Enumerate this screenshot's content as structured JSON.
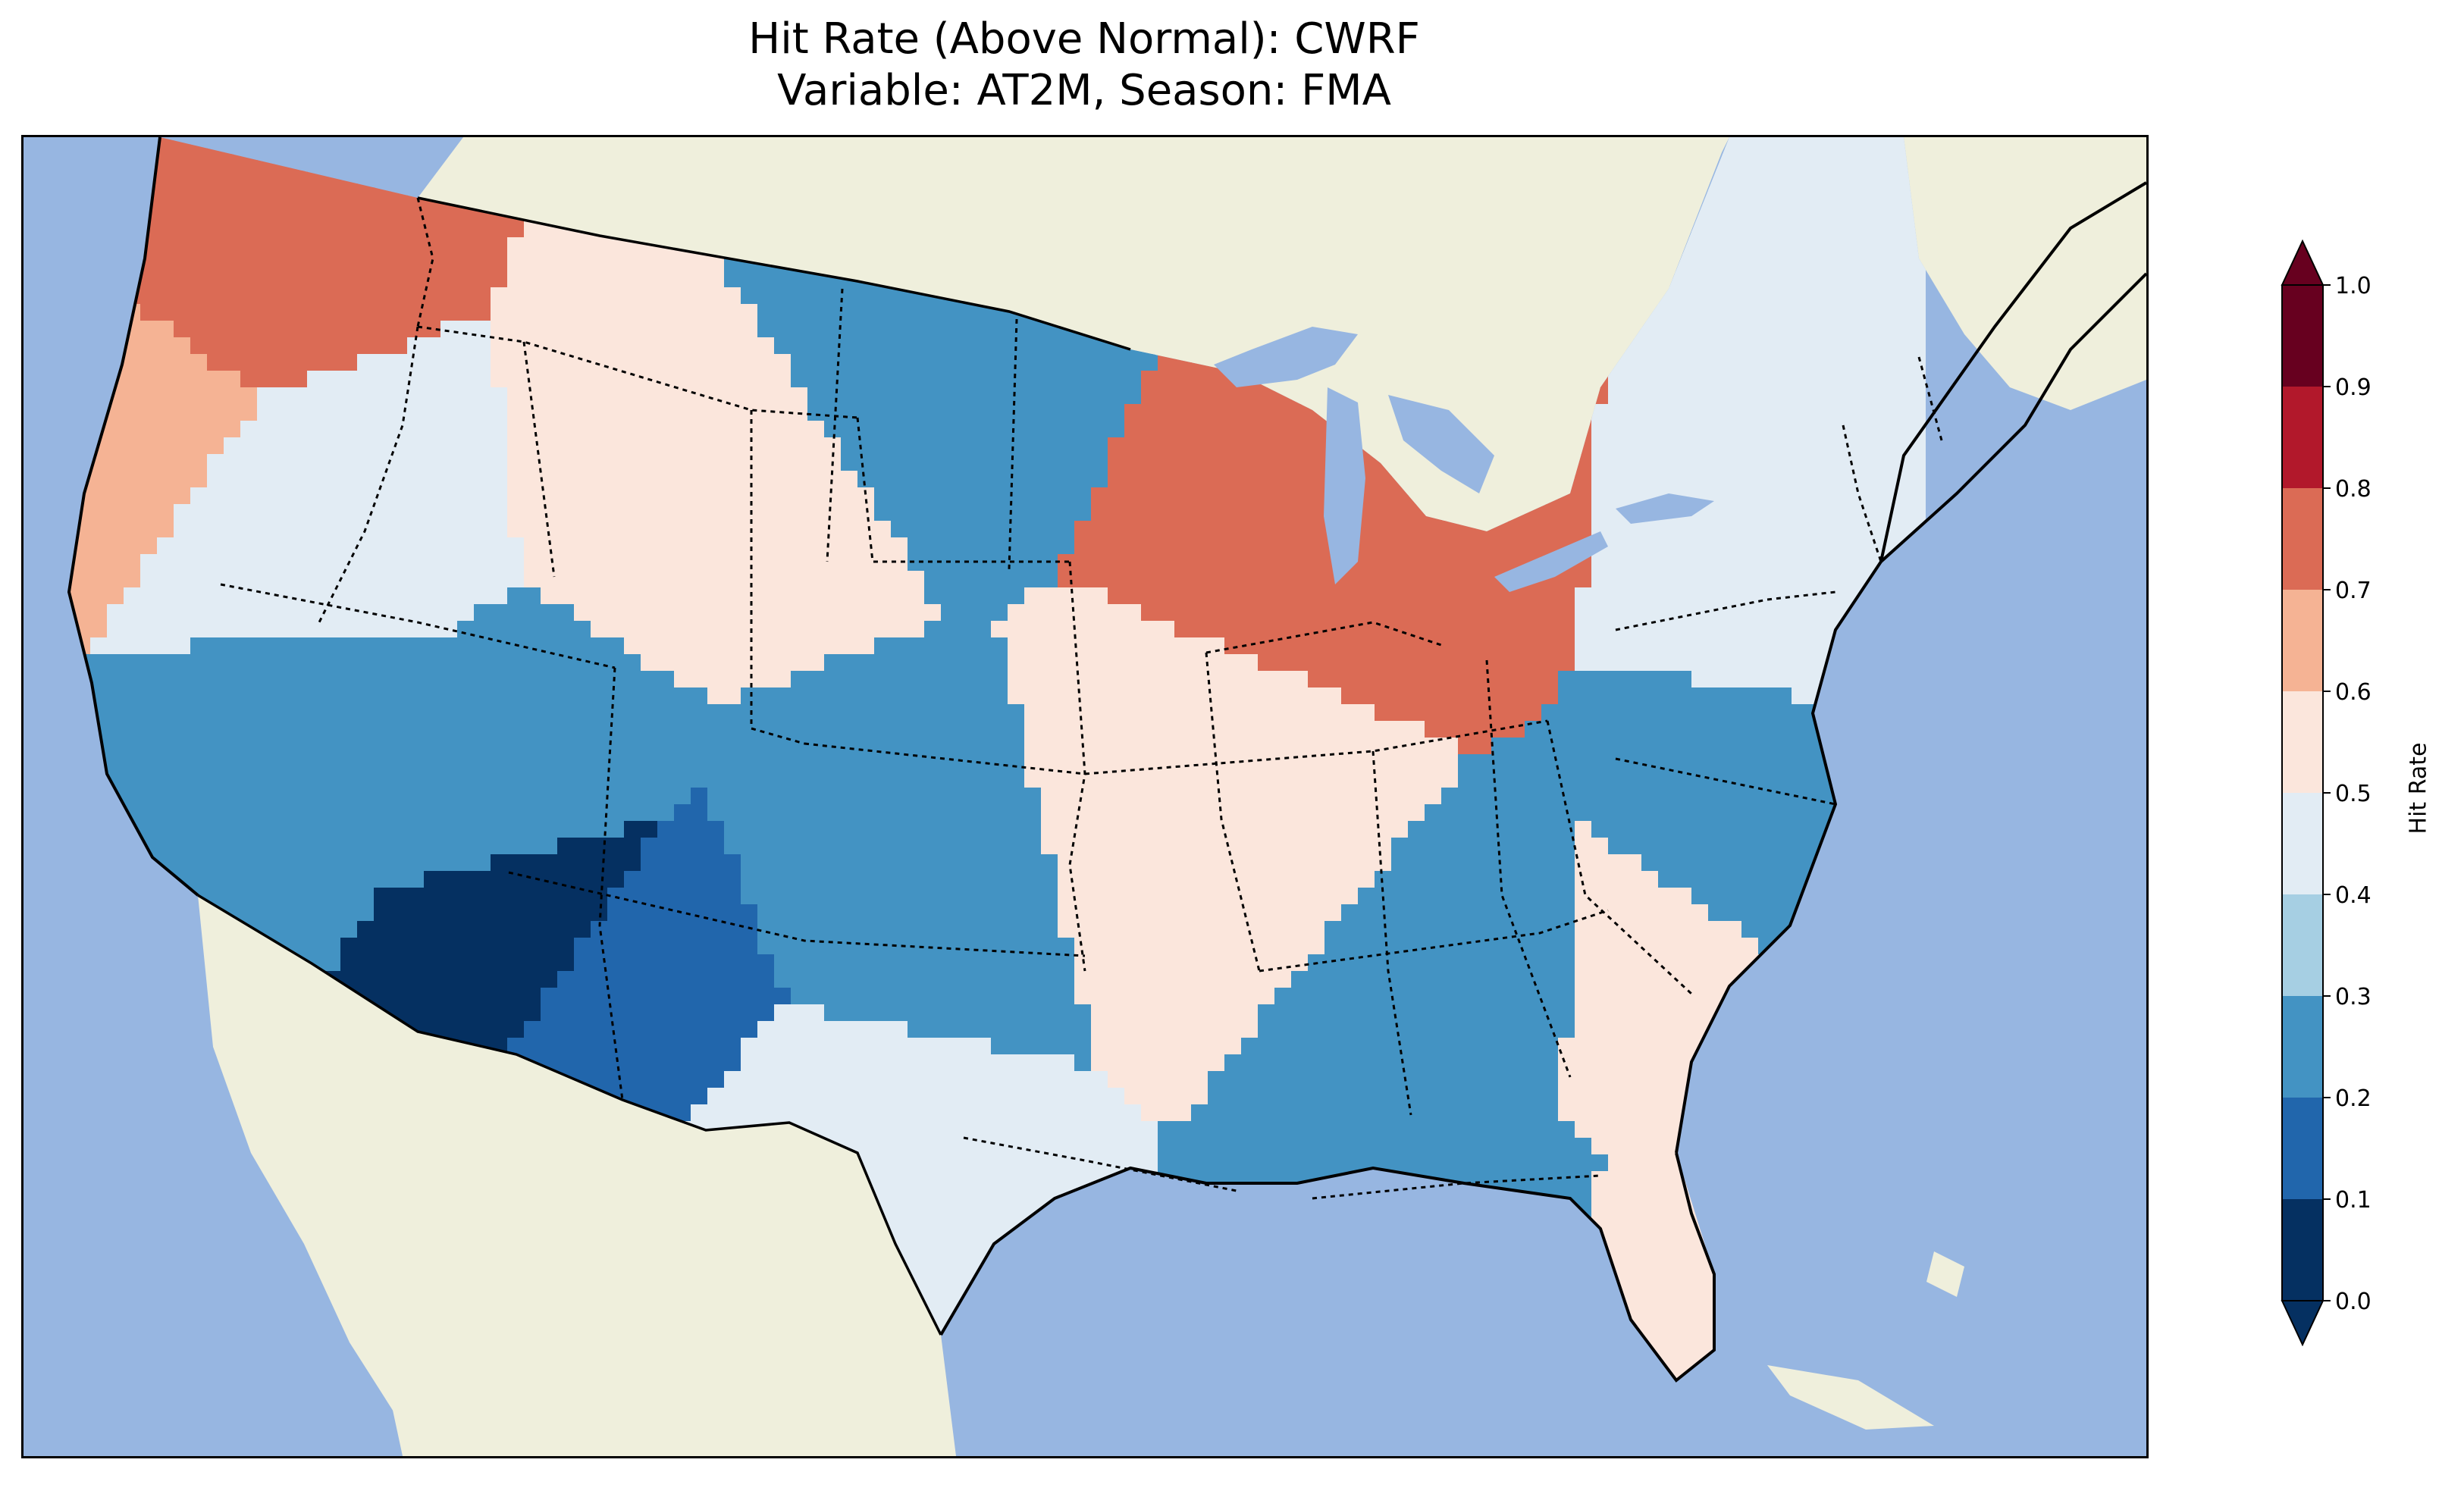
{
  "title": {
    "line1": "Hit Rate (Above Normal): CWRF",
    "line2": "Variable: AT2M, Season: FMA"
  },
  "colors": {
    "ocean": "#97b6e1",
    "land": "#efefdc",
    "lakes": "#97b6e1",
    "coast": "#000000"
  },
  "colorbar": {
    "label": "Hit Rate",
    "ticks": [
      "0.0",
      "0.1",
      "0.2",
      "0.3",
      "0.4",
      "0.5",
      "0.6",
      "0.7",
      "0.8",
      "0.9",
      "1.0"
    ],
    "bins": [
      {
        "range": [
          0.0,
          0.1
        ],
        "color": "#053061"
      },
      {
        "range": [
          0.1,
          0.2
        ],
        "color": "#2166ac"
      },
      {
        "range": [
          0.2,
          0.3
        ],
        "color": "#4393c3"
      },
      {
        "range": [
          0.3,
          0.4
        ],
        "color": "#a6cfe3"
      },
      {
        "range": [
          0.4,
          0.5
        ],
        "color": "#e2ecf4"
      },
      {
        "range": [
          0.5,
          0.6
        ],
        "color": "#fbe6dc"
      },
      {
        "range": [
          0.6,
          0.7
        ],
        "color": "#f5b394"
      },
      {
        "range": [
          0.7,
          0.8
        ],
        "color": "#db6b55"
      },
      {
        "range": [
          0.8,
          0.9
        ],
        "color": "#b2182b"
      },
      {
        "range": [
          0.9,
          1.0
        ],
        "color": "#67001f"
      }
    ],
    "extend": "both",
    "under_color": "#053061",
    "over_color": "#67001f"
  },
  "map": {
    "projection": "regional, contiguous United States",
    "features": [
      "coastlines",
      "state borders",
      "country borders",
      "lakes"
    ],
    "regions": [
      {
        "area": "Washington / NW Oregon",
        "value": 0.75
      },
      {
        "area": "Pacific Northwest coast",
        "value": 0.65
      },
      {
        "area": "Northern Great Basin",
        "value": 0.45
      },
      {
        "area": "Northern Rockies / Northern Plains",
        "value": 0.55
      },
      {
        "area": "North Dakota / Minnesota",
        "value": 0.25
      },
      {
        "area": "Wisconsin / Michigan",
        "value": 0.75
      },
      {
        "area": "Great Basin / Nevada",
        "value": 0.25
      },
      {
        "area": "Colorado Plateau",
        "value": 0.25
      },
      {
        "area": "Four Corners",
        "value": 0.05
      },
      {
        "area": "Northern New Mexico",
        "value": 0.15
      },
      {
        "area": "Kansas / Oklahoma",
        "value": 0.25
      },
      {
        "area": "Midwest",
        "value": 0.55
      },
      {
        "area": "Tennessee / Georgia",
        "value": 0.25
      },
      {
        "area": "Gulf Coast",
        "value": 0.25
      },
      {
        "area": "Texas",
        "value": 0.45
      },
      {
        "area": "Southeast Atlantic",
        "value": 0.55
      },
      {
        "area": "Florida",
        "value": 0.55
      },
      {
        "area": "Mid-Atlantic coast",
        "value": 0.25
      },
      {
        "area": "Northeast",
        "value": 0.45
      }
    ]
  }
}
